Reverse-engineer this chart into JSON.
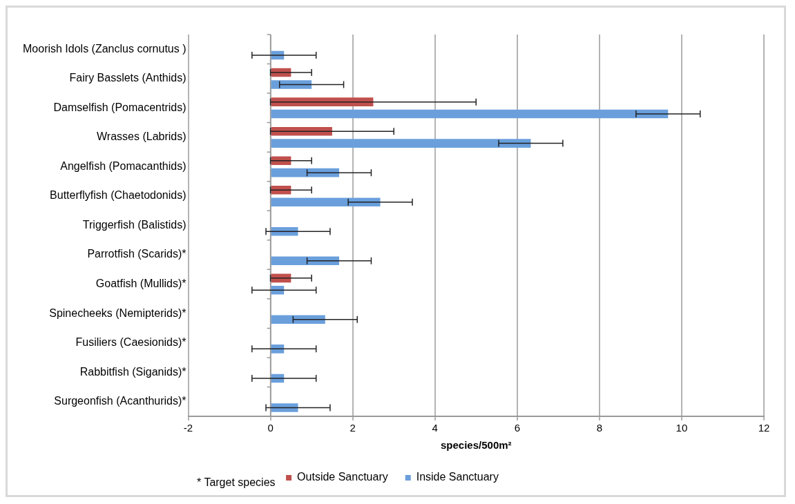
{
  "chart_data": {
    "type": "bar",
    "orientation": "horizontal",
    "xlabel": "species/500m²",
    "categories": [
      "Moorish Idols (Zanclus cornutus )",
      "Fairy Basslets (Anthids)",
      "Damselfish (Pomacentrids)",
      "Wrasses (Labrids)",
      "Angelfish (Pomacanthids)",
      "Butterflyfish (Chaetodonids)",
      "Triggerfish (Balistids)",
      "Parrotfish (Scarids)*",
      "Goatfish (Mullids)*",
      "Spinecheeks (Nemipterids)*",
      "Fusiliers (Caesionids)*",
      "Rabbitfish (Siganids)*",
      "Surgeonfish (Acanthurids)*"
    ],
    "series": [
      {
        "name": "Outside Sanctuary",
        "color": "#c0504d",
        "values": [
          null,
          0.5,
          2.5,
          1.5,
          0.5,
          0.5,
          null,
          null,
          0.5,
          null,
          null,
          null,
          null
        ],
        "errors": [
          null,
          0.5,
          2.5,
          1.5,
          0.5,
          0.5,
          null,
          null,
          0.5,
          null,
          null,
          null,
          null
        ]
      },
      {
        "name": "Inside Sanctuary",
        "color": "#6a9fdc",
        "values": [
          0.33,
          1.0,
          9.67,
          6.33,
          1.67,
          2.67,
          0.67,
          1.67,
          0.33,
          1.33,
          0.33,
          0.33,
          0.67
        ],
        "errors": [
          0.78,
          0.78,
          0.78,
          0.78,
          0.78,
          0.78,
          0.78,
          0.78,
          0.78,
          0.78,
          0.78,
          0.78,
          0.78
        ]
      }
    ],
    "xlim": [
      -2,
      12
    ],
    "xticks": [
      -2,
      0,
      2,
      4,
      6,
      8,
      10,
      12
    ],
    "grid": "x",
    "legend": "bottom",
    "annotations": [
      "* Target species"
    ]
  }
}
